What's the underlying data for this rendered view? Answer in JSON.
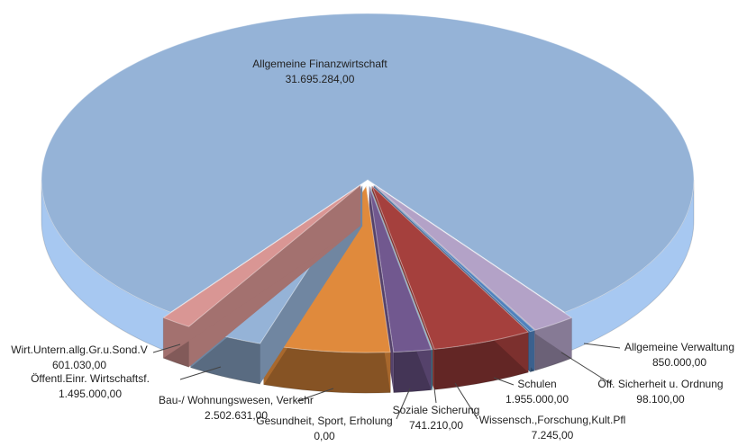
{
  "chart_data": {
    "type": "pie",
    "categories": [
      "Allgemeine Finanzwirtschaft",
      "Allgemeine Verwaltung",
      "Öff. Sicherheit u. Ordnung",
      "Schulen",
      "Wissensch.,Forschung,Kult.Pfl",
      "Soziale Sicherung",
      "Gesundheit, Sport, Erholung",
      "Bau-/ Wohnungswesen, Verkehr",
      "Öffentl.Einr. Wirtschaftsf.",
      "Wirt.Untern.allg.Gr.u.Sond.V"
    ],
    "values": [
      31695284,
      850000,
      98100,
      1955000,
      7245,
      741210,
      0,
      2502631,
      1495000,
      601030
    ],
    "value_labels": [
      "31.695.284,00",
      "850.000,00",
      "98.100,00",
      "1.955.000,00",
      "7.245,00",
      "741.210,00",
      "0,00",
      "2.502.631,00",
      "1.495.000,00",
      "601.030,00"
    ],
    "colors": [
      "#95b3d7",
      "#b3a2c7",
      "#4f81bd",
      "#a5403d",
      "#4bacc6",
      "#71588f",
      "#f79646",
      "#e08a3c",
      "#95b3d7",
      "#d99694"
    ]
  }
}
